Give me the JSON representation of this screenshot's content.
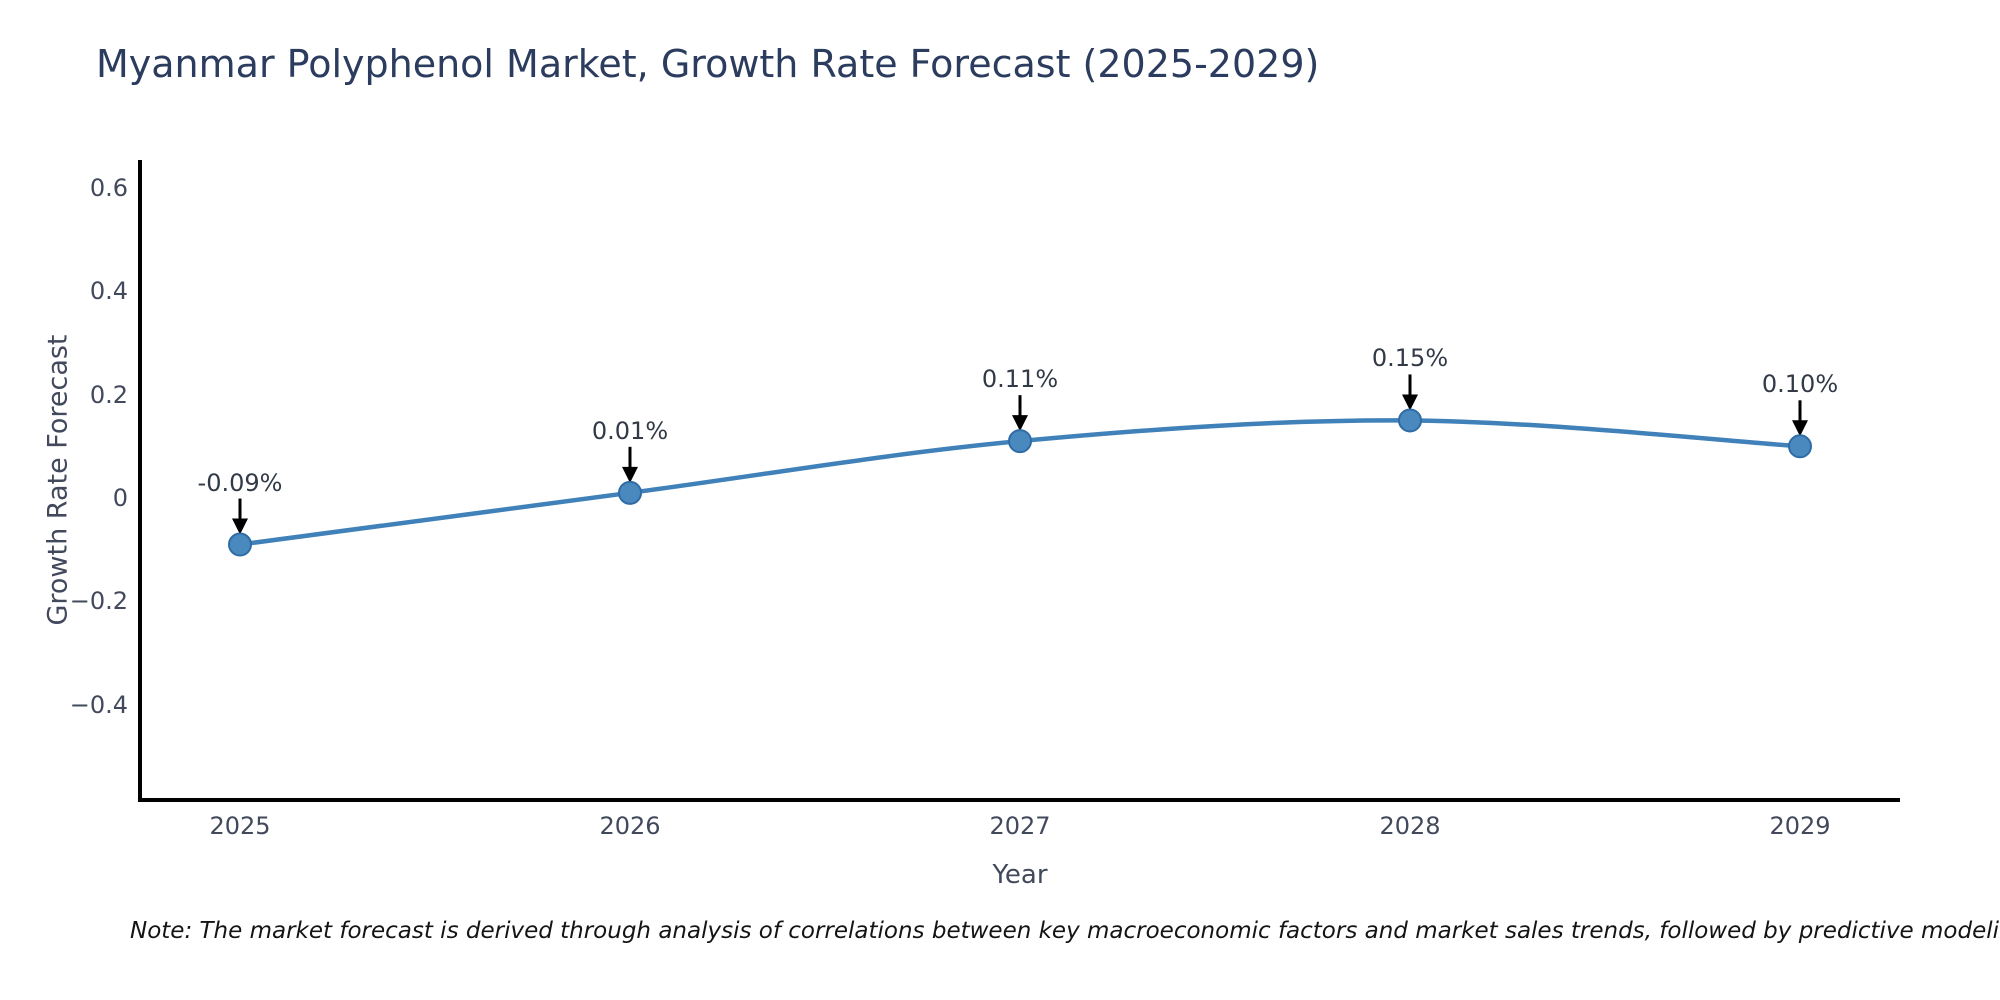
{
  "title": "Myanmar Polyphenol Market, Growth Rate Forecast (2025-2029)",
  "note": "Note: The market forecast is derived through analysis of correlations between key macroeconomic factors and market sales trends, followed by predictive modeling to project future sales.",
  "chart_data": {
    "type": "line",
    "title": "Myanmar Polyphenol Market, Growth Rate Forecast (2025-2029)",
    "xlabel": "Year",
    "ylabel": "Growth Rate Forecast",
    "categories": [
      "2025",
      "2026",
      "2027",
      "2028",
      "2029"
    ],
    "series": [
      {
        "name": "Growth Rate Forecast",
        "values": [
          -0.09,
          0.01,
          0.11,
          0.15,
          0.1
        ],
        "point_labels": [
          "-0.09%",
          "0.01%",
          "0.11%",
          "0.15%",
          "0.10%"
        ]
      }
    ],
    "y_ticks": [
      {
        "value": 0.6,
        "label": "0.6"
      },
      {
        "value": 0.4,
        "label": "0.4"
      },
      {
        "value": 0.2,
        "label": "0.2"
      },
      {
        "value": 0,
        "label": "0"
      },
      {
        "value": -0.2,
        "label": "−0.2"
      },
      {
        "value": -0.4,
        "label": "−0.4"
      }
    ],
    "ylim": [
      -0.59,
      0.65
    ],
    "grid": false,
    "legend": "none",
    "line_shape": "spline",
    "colors": {
      "line": "#3f81b8",
      "marker_fill": "#4a89bd",
      "marker_edge": "#2f6ba6",
      "arrow": "#000000",
      "spine": "#000000"
    }
  }
}
